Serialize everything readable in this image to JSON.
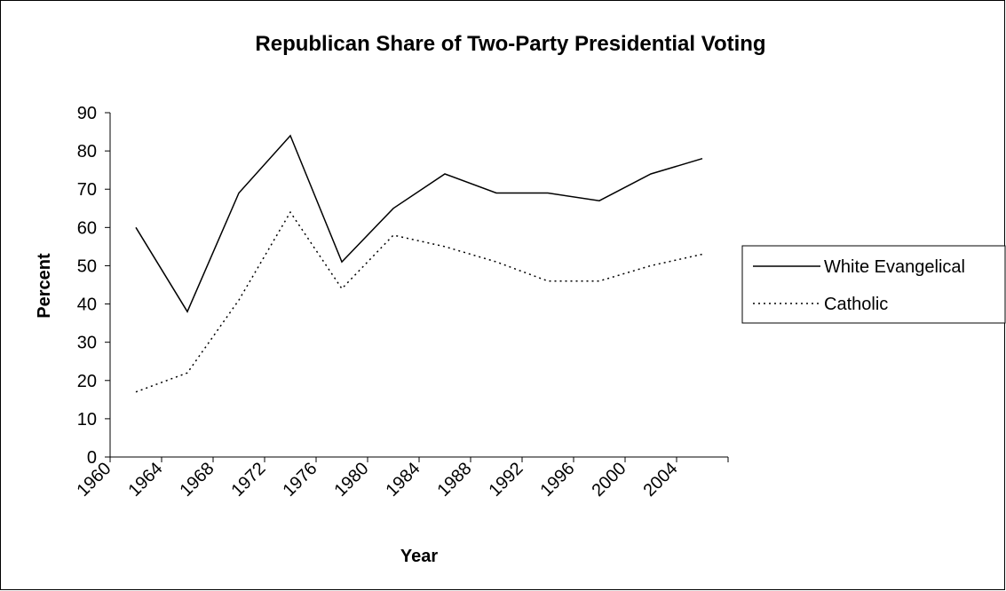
{
  "chart_data": {
    "type": "line",
    "title": "Republican Share of Two-Party Presidential Voting",
    "xlabel": "Year",
    "ylabel": "Percent",
    "x": [
      1960,
      1964,
      1968,
      1972,
      1976,
      1980,
      1984,
      1988,
      1992,
      1996,
      2000,
      2004
    ],
    "ylim": [
      0,
      90
    ],
    "yticks": [
      0,
      10,
      20,
      30,
      40,
      50,
      60,
      70,
      80,
      90
    ],
    "grid": false,
    "legend_position": "right",
    "series": [
      {
        "name": "White Evangelical",
        "style": "solid",
        "color": "#000000",
        "values": [
          60,
          38,
          69,
          84,
          51,
          65,
          74,
          69,
          69,
          67,
          74,
          78
        ]
      },
      {
        "name": "Catholic",
        "style": "dotted",
        "color": "#000000",
        "values": [
          17,
          22,
          41,
          64,
          44,
          58,
          55,
          51,
          46,
          46,
          50,
          53
        ]
      }
    ]
  }
}
